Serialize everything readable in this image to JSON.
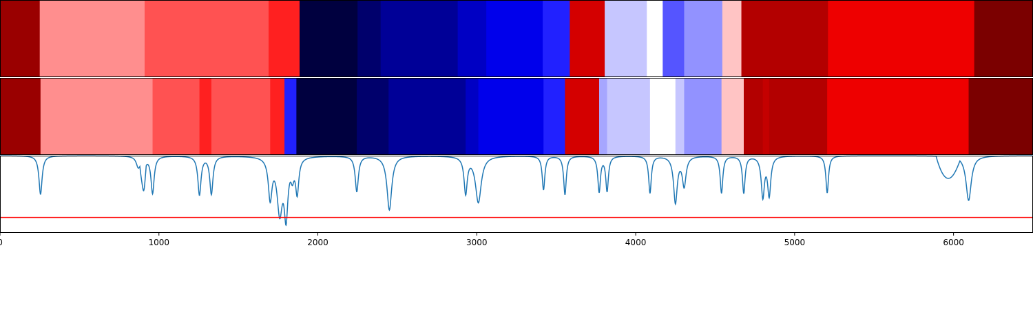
{
  "chart_data": {
    "type": "heatmap",
    "title": "",
    "xlabel": "",
    "ylabel": "",
    "xlim": [
      0,
      6500
    ],
    "x_ticks": [
      0,
      1000,
      2000,
      3000,
      4000,
      5000,
      6000
    ],
    "x_tick_labels": [
      "0",
      "1000",
      "2000",
      "3000",
      "4000",
      "5000",
      "6000"
    ],
    "panels": [
      {
        "name": "",
        "segments": [
          {
            "start": 0,
            "end": 250,
            "color": "#9a0000"
          },
          {
            "start": 250,
            "end": 910,
            "color": "#ff8e8e"
          },
          {
            "start": 910,
            "end": 1690,
            "color": "#ff5252"
          },
          {
            "start": 1690,
            "end": 1885,
            "color": "#ff2020"
          },
          {
            "start": 1885,
            "end": 2250,
            "color": "#00003f"
          },
          {
            "start": 2250,
            "end": 2395,
            "color": "#00006c"
          },
          {
            "start": 2395,
            "end": 2880,
            "color": "#000097"
          },
          {
            "start": 2880,
            "end": 3060,
            "color": "#0000c4"
          },
          {
            "start": 3060,
            "end": 3415,
            "color": "#0000eb"
          },
          {
            "start": 3415,
            "end": 3585,
            "color": "#2121ff"
          },
          {
            "start": 3585,
            "end": 3805,
            "color": "#d40000"
          },
          {
            "start": 3805,
            "end": 4070,
            "color": "#c6c6ff"
          },
          {
            "start": 4070,
            "end": 4170,
            "color": "#ffffff"
          },
          {
            "start": 4170,
            "end": 4305,
            "color": "#5555ff"
          },
          {
            "start": 4305,
            "end": 4545,
            "color": "#9292ff"
          },
          {
            "start": 4545,
            "end": 4665,
            "color": "#ffc4c4"
          },
          {
            "start": 4665,
            "end": 5210,
            "color": "#b30000"
          },
          {
            "start": 5210,
            "end": 6130,
            "color": "#ee0000"
          },
          {
            "start": 6130,
            "end": 6500,
            "color": "#7b0000"
          }
        ]
      },
      {
        "name": "",
        "segments": [
          {
            "start": 0,
            "end": 255,
            "color": "#9a0000"
          },
          {
            "start": 255,
            "end": 960,
            "color": "#ff8e8e"
          },
          {
            "start": 960,
            "end": 1255,
            "color": "#ff5252"
          },
          {
            "start": 1255,
            "end": 1330,
            "color": "#ff2020"
          },
          {
            "start": 1330,
            "end": 1700,
            "color": "#ff5252"
          },
          {
            "start": 1700,
            "end": 1790,
            "color": "#ff2020"
          },
          {
            "start": 1790,
            "end": 1865,
            "color": "#2121ff"
          },
          {
            "start": 1865,
            "end": 2245,
            "color": "#00003f"
          },
          {
            "start": 2245,
            "end": 2445,
            "color": "#00006c"
          },
          {
            "start": 2445,
            "end": 2930,
            "color": "#000097"
          },
          {
            "start": 2930,
            "end": 3010,
            "color": "#0000c4"
          },
          {
            "start": 3010,
            "end": 3420,
            "color": "#0000eb"
          },
          {
            "start": 3420,
            "end": 3555,
            "color": "#2121ff"
          },
          {
            "start": 3555,
            "end": 3770,
            "color": "#d40000"
          },
          {
            "start": 3770,
            "end": 3820,
            "color": "#a6a6ff"
          },
          {
            "start": 3820,
            "end": 4090,
            "color": "#c6c6ff"
          },
          {
            "start": 4090,
            "end": 4250,
            "color": "#ffffff"
          },
          {
            "start": 4250,
            "end": 4305,
            "color": "#c6c6ff"
          },
          {
            "start": 4305,
            "end": 4540,
            "color": "#9292ff"
          },
          {
            "start": 4540,
            "end": 4680,
            "color": "#ffc4c4"
          },
          {
            "start": 4680,
            "end": 4800,
            "color": "#b30000"
          },
          {
            "start": 4800,
            "end": 4840,
            "color": "#c40000"
          },
          {
            "start": 4840,
            "end": 5205,
            "color": "#b30000"
          },
          {
            "start": 5205,
            "end": 6095,
            "color": "#ee0000"
          },
          {
            "start": 6095,
            "end": 6500,
            "color": "#7b0000"
          }
        ]
      }
    ],
    "line_panel": {
      "series_color": "#1f77b4",
      "threshold": 0.8,
      "threshold_color": "#ff0000",
      "ylim": [
        0,
        1
      ],
      "background": [
        {
          "start": 880,
          "end": 920,
          "depth": 0.22
        },
        {
          "start": 5890,
          "end": 6040,
          "depth": 0.28
        }
      ],
      "dips": [
        {
          "x": 255,
          "depth": 0.5,
          "width": 12
        },
        {
          "x": 870,
          "depth": 0.13,
          "width": 15
        },
        {
          "x": 905,
          "depth": 0.2,
          "width": 12
        },
        {
          "x": 960,
          "depth": 0.48,
          "width": 12
        },
        {
          "x": 1255,
          "depth": 0.5,
          "width": 12
        },
        {
          "x": 1330,
          "depth": 0.49,
          "width": 12
        },
        {
          "x": 1700,
          "depth": 0.52,
          "width": 14
        },
        {
          "x": 1760,
          "depth": 0.7,
          "width": 20
        },
        {
          "x": 1800,
          "depth": 0.72,
          "width": 14
        },
        {
          "x": 1840,
          "depth": 0.2,
          "width": 12
        },
        {
          "x": 1870,
          "depth": 0.45,
          "width": 12
        },
        {
          "x": 2245,
          "depth": 0.46,
          "width": 12
        },
        {
          "x": 2450,
          "depth": 0.7,
          "width": 18
        },
        {
          "x": 2930,
          "depth": 0.47,
          "width": 12
        },
        {
          "x": 3010,
          "depth": 0.6,
          "width": 22
        },
        {
          "x": 3420,
          "depth": 0.44,
          "width": 10
        },
        {
          "x": 3555,
          "depth": 0.5,
          "width": 10
        },
        {
          "x": 3770,
          "depth": 0.46,
          "width": 10
        },
        {
          "x": 3820,
          "depth": 0.45,
          "width": 10
        },
        {
          "x": 4090,
          "depth": 0.48,
          "width": 10
        },
        {
          "x": 4250,
          "depth": 0.6,
          "width": 14
        },
        {
          "x": 4305,
          "depth": 0.38,
          "width": 14
        },
        {
          "x": 4540,
          "depth": 0.48,
          "width": 10
        },
        {
          "x": 4680,
          "depth": 0.48,
          "width": 10
        },
        {
          "x": 4800,
          "depth": 0.52,
          "width": 12
        },
        {
          "x": 4840,
          "depth": 0.5,
          "width": 12
        },
        {
          "x": 5205,
          "depth": 0.48,
          "width": 10
        },
        {
          "x": 6095,
          "depth": 0.58,
          "width": 20
        }
      ]
    }
  }
}
